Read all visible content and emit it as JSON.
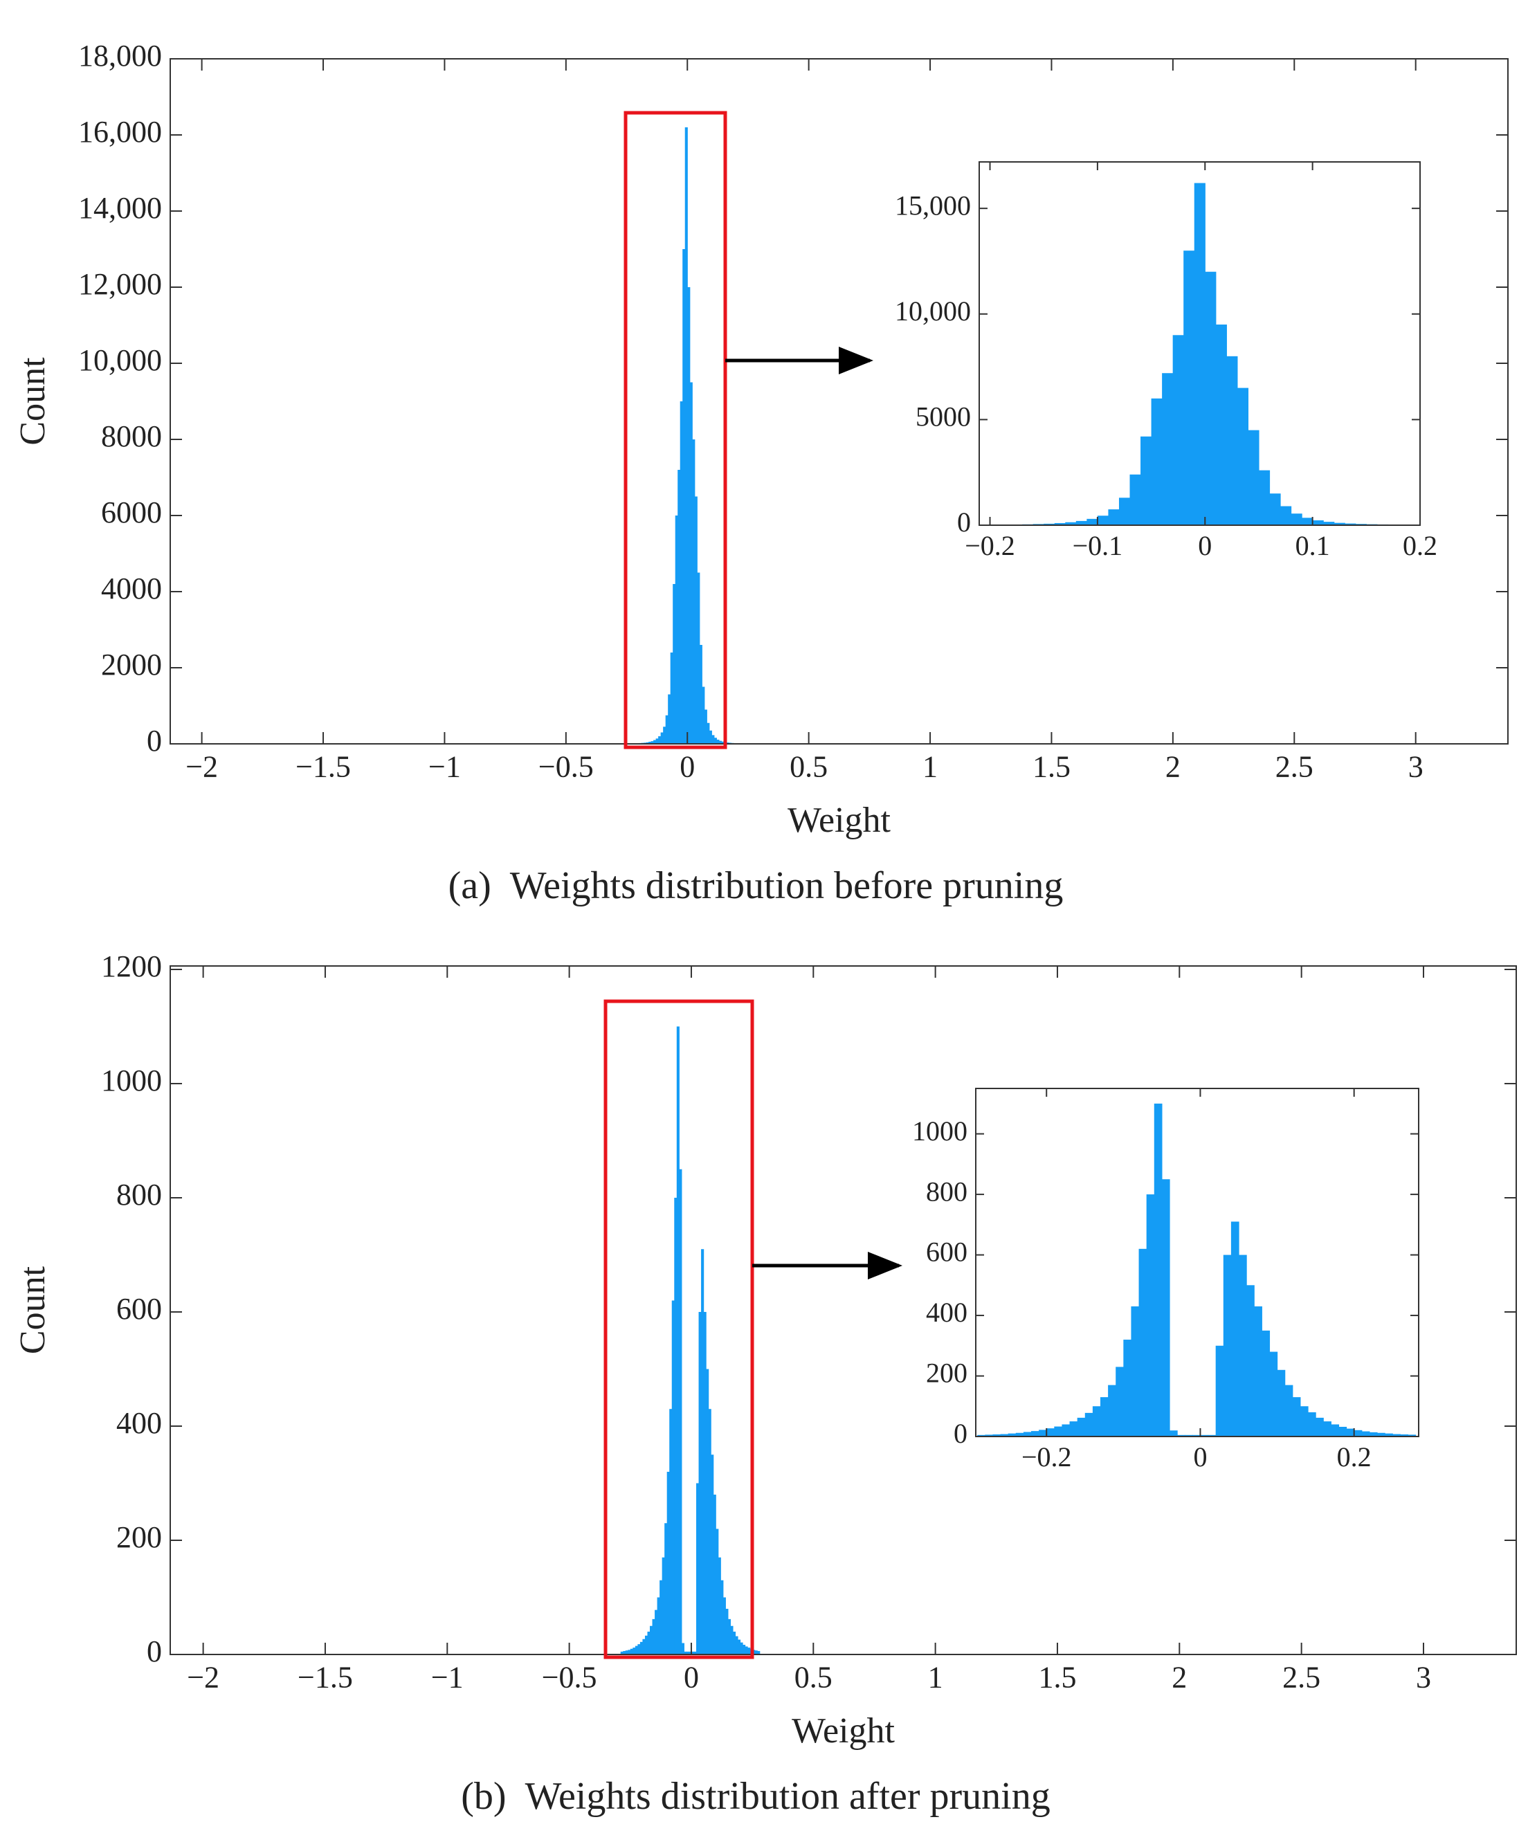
{
  "chart_data": [
    {
      "type": "histogram",
      "xlabel": "Weight",
      "ylabel": "Count",
      "caption": "(a)  Weights distribution before pruning",
      "color": "#149cf5",
      "xlim": [
        -2.13,
        3.38
      ],
      "ylim": [
        0,
        18000
      ],
      "xticks": [
        {
          "value": -2,
          "label": "−2"
        },
        {
          "value": -1.5,
          "label": "−1.5"
        },
        {
          "value": -1,
          "label": "−1"
        },
        {
          "value": -0.5,
          "label": "−0.5"
        },
        0,
        0.5,
        1,
        1.5,
        2,
        2.5,
        3
      ],
      "yticks": [
        0,
        2000,
        4000,
        6000,
        8000,
        {
          "value": 10000,
          "label": "10,000"
        },
        {
          "value": 12000,
          "label": "12,000"
        },
        {
          "value": 14000,
          "label": "14,000"
        },
        {
          "value": 16000,
          "label": "16,000"
        },
        {
          "value": 18000,
          "label": "18,000"
        }
      ],
      "bins": [
        -0.2,
        -0.19,
        -0.18,
        -0.17,
        -0.16,
        -0.15,
        -0.14,
        -0.13,
        -0.12,
        -0.11,
        -0.1,
        -0.09,
        -0.08,
        -0.07,
        -0.06,
        -0.05,
        -0.04,
        -0.03,
        -0.02,
        -0.01,
        0,
        0.01,
        0.02,
        0.03,
        0.04,
        0.05,
        0.06,
        0.07,
        0.08,
        0.09,
        0.1,
        0.11,
        0.12,
        0.13,
        0.14,
        0.15,
        0.16,
        0.17,
        0.18,
        0.19,
        0.2
      ],
      "values": [
        20,
        25,
        30,
        40,
        55,
        70,
        100,
        140,
        200,
        300,
        450,
        750,
        1300,
        2400,
        4200,
        6000,
        7200,
        9000,
        13000,
        16200,
        12000,
        9500,
        8000,
        6500,
        4500,
        2600,
        1500,
        900,
        550,
        350,
        230,
        160,
        110,
        80,
        60,
        45,
        35,
        28,
        22,
        18
      ]
    },
    {
      "type": "histogram",
      "color": "#149cf5",
      "xlim": [
        -0.21,
        0.2
      ],
      "ylim": [
        0,
        17200
      ],
      "xticks": [
        {
          "value": -0.2,
          "label": "−0.2"
        },
        {
          "value": -0.1,
          "label": "−0.1"
        },
        0,
        0.1,
        0.2
      ],
      "yticks": [
        0,
        5000,
        {
          "value": 10000,
          "label": "10,000"
        },
        {
          "value": 15000,
          "label": "15,000"
        }
      ],
      "bins": [
        -0.2,
        -0.19,
        -0.18,
        -0.17,
        -0.16,
        -0.15,
        -0.14,
        -0.13,
        -0.12,
        -0.11,
        -0.1,
        -0.09,
        -0.08,
        -0.07,
        -0.06,
        -0.05,
        -0.04,
        -0.03,
        -0.02,
        -0.01,
        0,
        0.01,
        0.02,
        0.03,
        0.04,
        0.05,
        0.06,
        0.07,
        0.08,
        0.09,
        0.1,
        0.11,
        0.12,
        0.13,
        0.14,
        0.15,
        0.16,
        0.17,
        0.18,
        0.19,
        0.2
      ],
      "values": [
        20,
        25,
        30,
        40,
        55,
        70,
        100,
        140,
        200,
        300,
        450,
        750,
        1300,
        2400,
        4200,
        6000,
        7200,
        9000,
        13000,
        16200,
        12000,
        9500,
        8000,
        6500,
        4500,
        2600,
        1500,
        900,
        550,
        350,
        230,
        160,
        110,
        80,
        60,
        45,
        35,
        28,
        22,
        18
      ]
    },
    {
      "type": "histogram",
      "xlabel": "Weight",
      "ylabel": "Count",
      "caption": "(b)  Weights distribution after pruning",
      "color": "#149cf5",
      "xlim": [
        -2.135,
        3.38
      ],
      "ylim": [
        0,
        1206
      ],
      "xticks": [
        {
          "value": -2,
          "label": "−2"
        },
        {
          "value": -1.5,
          "label": "−1.5"
        },
        {
          "value": -1,
          "label": "−1"
        },
        {
          "value": -0.5,
          "label": "−0.5"
        },
        0,
        0.5,
        1,
        1.5,
        2,
        2.5,
        3
      ],
      "yticks": [
        0,
        200,
        400,
        600,
        800,
        1000,
        1200
      ],
      "bins": [
        -0.29,
        -0.28,
        -0.27,
        -0.26,
        -0.25,
        -0.24,
        -0.23,
        -0.22,
        -0.21,
        -0.2,
        -0.19,
        -0.18,
        -0.17,
        -0.16,
        -0.15,
        -0.14,
        -0.13,
        -0.12,
        -0.11,
        -0.1,
        -0.09,
        -0.08,
        -0.07,
        -0.06,
        -0.05,
        -0.04,
        -0.03,
        -0.02,
        -0.01,
        0,
        0.01,
        0.02,
        0.03,
        0.04,
        0.05,
        0.06,
        0.07,
        0.08,
        0.09,
        0.1,
        0.11,
        0.12,
        0.13,
        0.14,
        0.15,
        0.16,
        0.17,
        0.18,
        0.19,
        0.2,
        0.21,
        0.22,
        0.23,
        0.24,
        0.25,
        0.26,
        0.27,
        0.28
      ],
      "values": [
        5,
        6,
        7,
        8,
        10,
        12,
        15,
        18,
        22,
        27,
        33,
        40,
        50,
        62,
        78,
        100,
        130,
        170,
        230,
        320,
        430,
        620,
        800,
        1100,
        850,
        20,
        5,
        5,
        5,
        5,
        5,
        300,
        600,
        710,
        600,
        500,
        430,
        350,
        280,
        220,
        170,
        130,
        100,
        80,
        62,
        50,
        40,
        32,
        26,
        21,
        17,
        14,
        12,
        10,
        8,
        7,
        6
      ]
    },
    {
      "type": "histogram",
      "color": "#149cf5",
      "xlim": [
        -0.292,
        0.284
      ],
      "ylim": [
        0,
        1150
      ],
      "xticks": [
        {
          "value": -0.2,
          "label": "−0.2"
        },
        0,
        0.2
      ],
      "yticks": [
        0,
        200,
        400,
        600,
        800,
        1000
      ],
      "bins": [
        -0.29,
        -0.28,
        -0.27,
        -0.26,
        -0.25,
        -0.24,
        -0.23,
        -0.22,
        -0.21,
        -0.2,
        -0.19,
        -0.18,
        -0.17,
        -0.16,
        -0.15,
        -0.14,
        -0.13,
        -0.12,
        -0.11,
        -0.1,
        -0.09,
        -0.08,
        -0.07,
        -0.06,
        -0.05,
        -0.04,
        -0.03,
        -0.02,
        -0.01,
        0,
        0.01,
        0.02,
        0.03,
        0.04,
        0.05,
        0.06,
        0.07,
        0.08,
        0.09,
        0.1,
        0.11,
        0.12,
        0.13,
        0.14,
        0.15,
        0.16,
        0.17,
        0.18,
        0.19,
        0.2,
        0.21,
        0.22,
        0.23,
        0.24,
        0.25,
        0.26,
        0.27,
        0.28
      ],
      "values": [
        5,
        6,
        7,
        8,
        10,
        12,
        15,
        18,
        22,
        27,
        33,
        40,
        50,
        62,
        78,
        100,
        130,
        170,
        230,
        320,
        430,
        620,
        800,
        1100,
        850,
        20,
        5,
        5,
        5,
        5,
        5,
        300,
        600,
        710,
        600,
        500,
        430,
        350,
        280,
        220,
        170,
        130,
        100,
        80,
        62,
        50,
        40,
        32,
        26,
        21,
        17,
        14,
        12,
        10,
        8,
        7,
        6
      ]
    }
  ]
}
